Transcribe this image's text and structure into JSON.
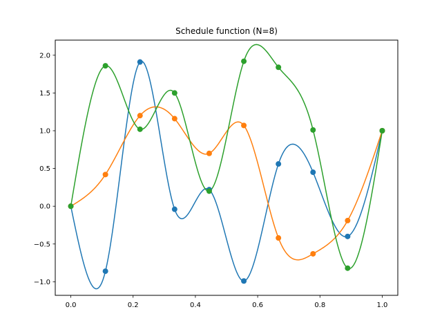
{
  "chart_data": {
    "type": "line",
    "title": "Schedule function (N=8)",
    "xlabel": "",
    "ylabel": "",
    "xlim": [
      -0.05,
      1.05
    ],
    "ylim": [
      -1.18,
      2.2
    ],
    "x_ticks": [
      0.0,
      0.2,
      0.4,
      0.6,
      0.8,
      1.0
    ],
    "x_tick_labels": [
      "0.0",
      "0.2",
      "0.4",
      "0.6",
      "0.8",
      "1.0"
    ],
    "y_ticks": [
      -1.0,
      -0.5,
      0.0,
      0.5,
      1.0,
      1.5,
      2.0
    ],
    "y_tick_labels": [
      "−1.0",
      "−0.5",
      "0.0",
      "0.5",
      "1.0",
      "1.5",
      "2.0"
    ],
    "grid": false,
    "x": [
      0.0,
      0.1111,
      0.2222,
      0.3333,
      0.4444,
      0.5556,
      0.6667,
      0.7778,
      0.8889,
      1.0
    ],
    "series": [
      {
        "color": "#1f77b4",
        "values": [
          0.0,
          -0.86,
          1.91,
          -0.04,
          0.22,
          -0.99,
          0.56,
          0.45,
          -0.4,
          1.0
        ]
      },
      {
        "color": "#ff7f0e",
        "values": [
          0.0,
          0.42,
          1.2,
          1.16,
          0.7,
          1.07,
          -0.42,
          -0.63,
          -0.19,
          1.0
        ]
      },
      {
        "color": "#2ca02c",
        "values": [
          0.0,
          1.86,
          1.02,
          1.5,
          0.2,
          1.92,
          1.84,
          1.01,
          -0.82,
          1.0
        ]
      }
    ]
  }
}
